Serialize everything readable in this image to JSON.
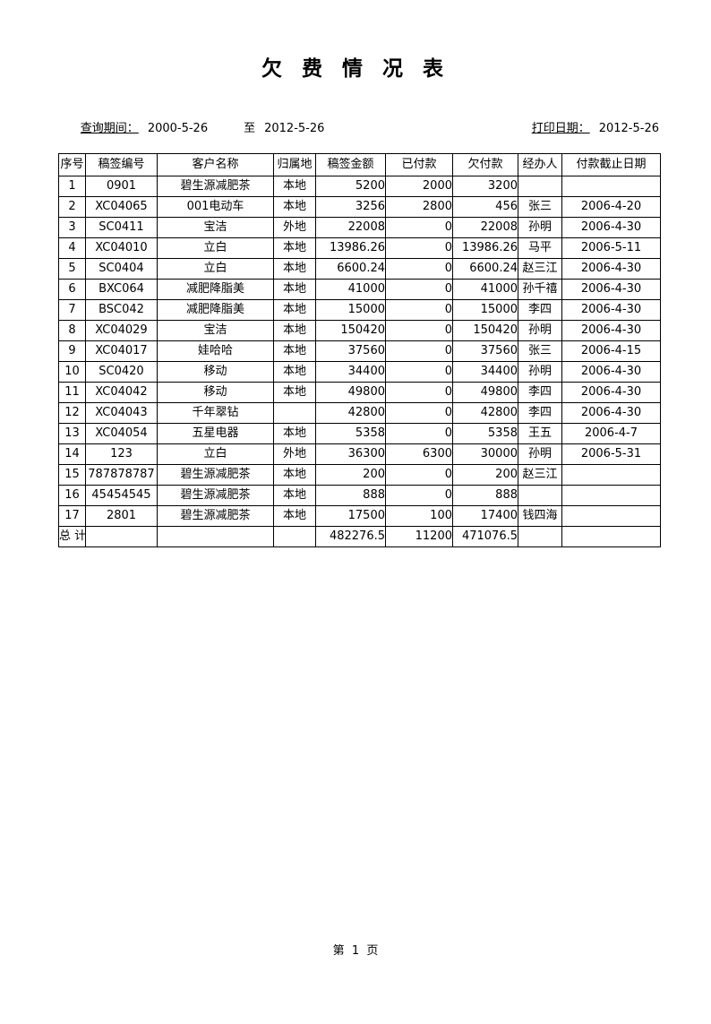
{
  "page": {
    "title": "欠 费 情 况 表",
    "query_label": "查询期间：",
    "query_from": "2000-5-26",
    "query_to_label": "至",
    "query_to": "2012-5-26",
    "print_label": "打印日期：",
    "print_date": "2012-5-26",
    "footer": "第  1  页"
  },
  "colors": {
    "border": "#000000",
    "text": "#000000",
    "background": "#ffffff"
  },
  "table": {
    "headers": [
      "序号",
      "稿签编号",
      "客户名称",
      "归属地",
      "稿签金额",
      "已付款",
      "欠付款",
      "经办人",
      "付款截止日期"
    ],
    "rows": [
      [
        "1",
        "0901",
        "碧生源减肥茶",
        "本地",
        "5200",
        "2000",
        "3200",
        "",
        ""
      ],
      [
        "2",
        "XC04065",
        "001电动车",
        "本地",
        "3256",
        "2800",
        "456",
        "张三",
        "2006-4-20"
      ],
      [
        "3",
        "SC0411",
        "宝洁",
        "外地",
        "22008",
        "0",
        "22008",
        "孙明",
        "2006-4-30"
      ],
      [
        "4",
        "XC04010",
        "立白",
        "本地",
        "13986.26",
        "0",
        "13986.26",
        "马平",
        "2006-5-11"
      ],
      [
        "5",
        "SC0404",
        "立白",
        "本地",
        "6600.24",
        "0",
        "6600.24",
        "赵三江",
        "2006-4-30"
      ],
      [
        "6",
        "BXC064",
        "减肥降脂美",
        "本地",
        "41000",
        "0",
        "41000",
        "孙千禧",
        "2006-4-30"
      ],
      [
        "7",
        "BSC042",
        "减肥降脂美",
        "本地",
        "15000",
        "0",
        "15000",
        "李四",
        "2006-4-30"
      ],
      [
        "8",
        "XC04029",
        "宝洁",
        "本地",
        "150420",
        "0",
        "150420",
        "孙明",
        "2006-4-30"
      ],
      [
        "9",
        "XC04017",
        "娃哈哈",
        "本地",
        "37560",
        "0",
        "37560",
        "张三",
        "2006-4-15"
      ],
      [
        "10",
        "SC0420",
        "移动",
        "本地",
        "34400",
        "0",
        "34400",
        "孙明",
        "2006-4-30"
      ],
      [
        "11",
        "XC04042",
        "移动",
        "本地",
        "49800",
        "0",
        "49800",
        "李四",
        "2006-4-30"
      ],
      [
        "12",
        "XC04043",
        "千年翠钻",
        "",
        "42800",
        "0",
        "42800",
        "李四",
        "2006-4-30"
      ],
      [
        "13",
        "XC04054",
        "五星电器",
        "本地",
        "5358",
        "0",
        "5358",
        "王五",
        "2006-4-7"
      ],
      [
        "14",
        "123",
        "立白",
        "外地",
        "36300",
        "6300",
        "30000",
        "孙明",
        "2006-5-31"
      ],
      [
        "15",
        "787878787",
        "碧生源减肥茶",
        "本地",
        "200",
        "0",
        "200",
        "赵三江",
        ""
      ],
      [
        "16",
        "45454545",
        "碧生源减肥茶",
        "本地",
        "888",
        "0",
        "888",
        "",
        ""
      ],
      [
        "17",
        "2801",
        "碧生源减肥茶",
        "本地",
        "17500",
        "100",
        "17400",
        "钱四海",
        ""
      ]
    ],
    "total_row": [
      "总 计",
      "",
      "",
      "",
      "482276.5",
      "11200",
      "471076.5",
      "",
      ""
    ]
  }
}
